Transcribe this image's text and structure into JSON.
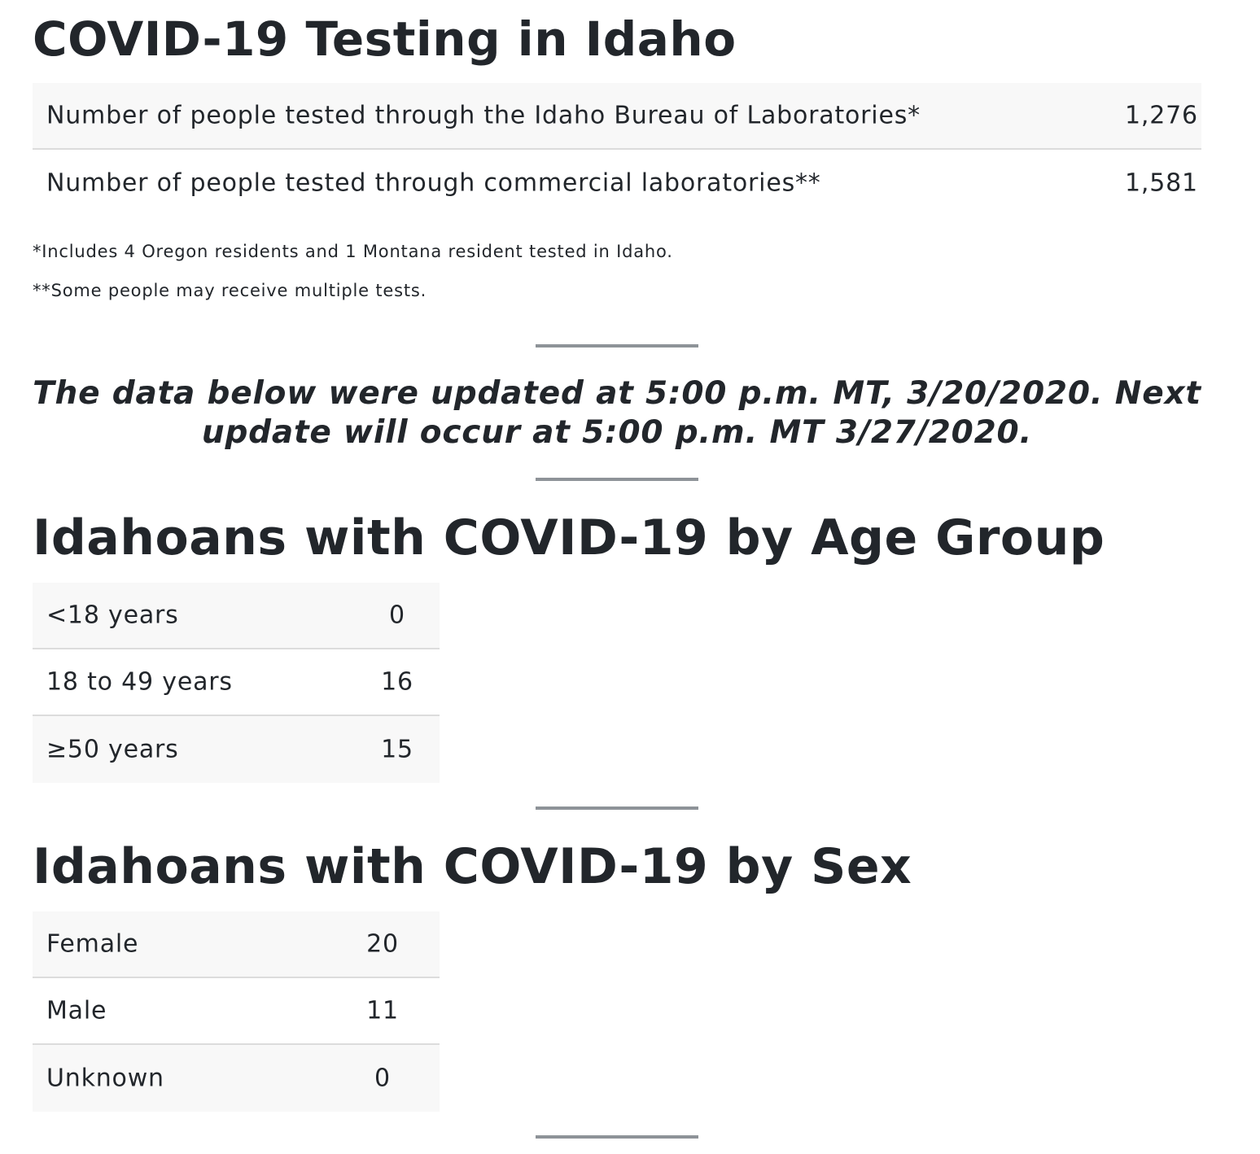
{
  "testing": {
    "title": "COVID-19 Testing in Idaho",
    "rows": [
      {
        "label": "Number of people tested through the Idaho Bureau of Laboratories*",
        "value": "1,276"
      },
      {
        "label": "Number of people tested through commercial laboratories**",
        "value": "1,581"
      }
    ],
    "notes": [
      "*Includes 4 Oregon residents and 1 Montana resident tested in Idaho.",
      "**Some people may receive multiple tests."
    ]
  },
  "update_notice": "The data below were updated at 5:00 p.m. MT, 3/20/2020. Next update will occur at 5:00 p.m. MT 3/27/2020.",
  "age_group": {
    "title": "Idahoans with COVID-19 by Age Group",
    "rows": [
      {
        "label": "<18 years",
        "value": "0"
      },
      {
        "label": "18 to 49 years",
        "value": "16"
      },
      {
        "label": "≥50 years",
        "value": "15"
      }
    ]
  },
  "sex": {
    "title": "Idahoans with COVID-19 by Sex",
    "rows": [
      {
        "label": "Female",
        "value": "20"
      },
      {
        "label": "Male",
        "value": "11"
      },
      {
        "label": "Unknown",
        "value": "0"
      }
    ]
  },
  "colors": {
    "text": "#22262b",
    "row_shade": "#f8f8f8",
    "row_divider": "#dcdcdc",
    "rule": "#8e9398"
  }
}
